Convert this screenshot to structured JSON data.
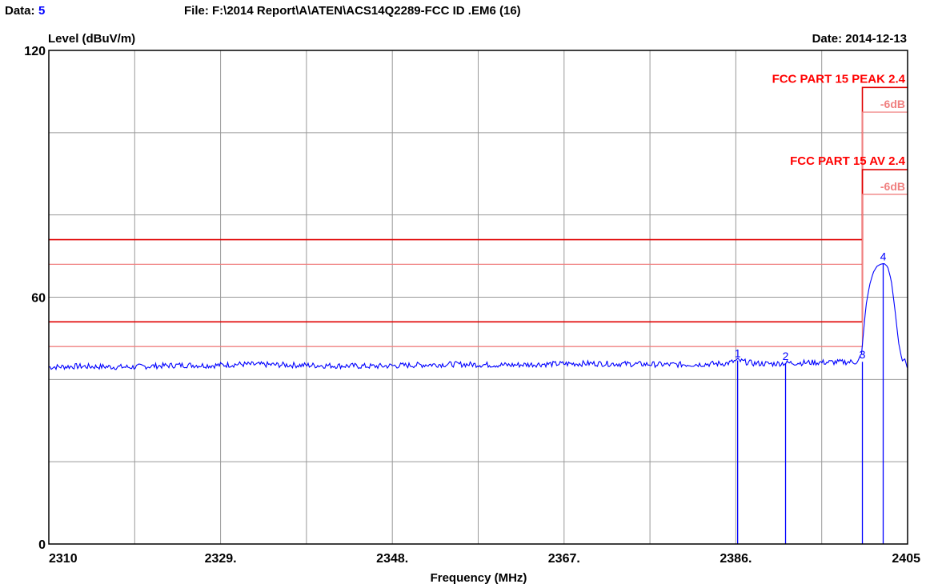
{
  "header": {
    "data_label": "Data:",
    "data_value": "5",
    "file_path": "File: F:\\2014 Report\\A\\ATEN\\ACS14Q2289-FCC ID .EM6  (16)",
    "date": "Date: 2014-12-13"
  },
  "colors": {
    "trace": "#0000ff",
    "limit": "#e00000",
    "limit_margin": "#f08080",
    "grid": "#999999",
    "frame": "#000000"
  },
  "chart_data": {
    "type": "line",
    "title": "",
    "xlabel": "Frequency (MHz)",
    "ylabel": "Level (dBuV/m)",
    "xlim": [
      2310,
      2405
    ],
    "ylim": [
      0,
      120
    ],
    "x_ticks": [
      2310,
      2329,
      2348,
      2367,
      2386,
      2405
    ],
    "x_tick_labels": [
      "2310",
      "2329.",
      "2348.",
      "2367.",
      "2386.",
      "2405"
    ],
    "x_grid": [
      2310,
      2319.5,
      2329,
      2338.5,
      2348,
      2357.5,
      2367,
      2376.5,
      2386,
      2395.5,
      2405
    ],
    "y_ticks": [
      0,
      60,
      120
    ],
    "y_tick_labels": [
      "0",
      "60",
      "120"
    ],
    "y_grid": [
      0,
      20,
      40,
      60,
      80,
      100,
      120
    ],
    "grid": true,
    "limits": [
      {
        "label": "FCC PART 15 PEAK 2.4",
        "margin_label": "-6dB",
        "below_band": 74,
        "below_band_margin": 68,
        "band_start": 2400,
        "in_band": 111,
        "in_band_margin": 105
      },
      {
        "label": "FCC PART 15  AV 2.4",
        "margin_label": "-6dB",
        "below_band": 54,
        "below_band_margin": 48,
        "band_start": 2400,
        "in_band": 91,
        "in_band_margin": 85
      }
    ],
    "series": [
      {
        "points": [
          [
            2310,
            43.0
          ],
          [
            2313,
            43.2
          ],
          [
            2316,
            43.1
          ],
          [
            2319,
            43.0
          ],
          [
            2322,
            43.3
          ],
          [
            2325,
            43.5
          ],
          [
            2328,
            43.4
          ],
          [
            2331,
            43.7
          ],
          [
            2334,
            43.6
          ],
          [
            2337,
            43.5
          ],
          [
            2340,
            43.4
          ],
          [
            2343,
            43.3
          ],
          [
            2346,
            43.2
          ],
          [
            2349,
            43.4
          ],
          [
            2352,
            43.6
          ],
          [
            2355,
            43.7
          ],
          [
            2358,
            43.6
          ],
          [
            2361,
            43.5
          ],
          [
            2364,
            43.7
          ],
          [
            2367,
            43.8
          ],
          [
            2370,
            43.9
          ],
          [
            2373,
            43.8
          ],
          [
            2376,
            43.7
          ],
          [
            2379,
            43.6
          ],
          [
            2382,
            43.7
          ],
          [
            2385,
            43.9
          ],
          [
            2386.2,
            44.6
          ],
          [
            2388,
            43.9
          ],
          [
            2390,
            43.8
          ],
          [
            2391.5,
            44.0
          ],
          [
            2394,
            44.1
          ],
          [
            2397,
            44.2
          ],
          [
            2399.5,
            44.3
          ],
          [
            2399.9,
            46.0
          ],
          [
            2400.1,
            51.0
          ],
          [
            2400.4,
            58.0
          ],
          [
            2400.8,
            63.0
          ],
          [
            2401.2,
            66.0
          ],
          [
            2401.6,
            67.5
          ],
          [
            2402,
            68.0
          ],
          [
            2402.4,
            68.2
          ],
          [
            2402.8,
            67.4
          ],
          [
            2403.2,
            64.0
          ],
          [
            2403.6,
            57.0
          ],
          [
            2404,
            49.0
          ],
          [
            2404.4,
            44.5
          ],
          [
            2404.7,
            45.0
          ],
          [
            2405,
            42.5
          ]
        ]
      }
    ],
    "markers": [
      {
        "id": "1",
        "freq": 2386.2,
        "level": 44.6
      },
      {
        "id": "2",
        "freq": 2391.5,
        "level": 44.0
      },
      {
        "id": "3",
        "freq": 2400.0,
        "level": 44.3
      },
      {
        "id": "4",
        "freq": 2402.3,
        "level": 68.2
      }
    ]
  }
}
